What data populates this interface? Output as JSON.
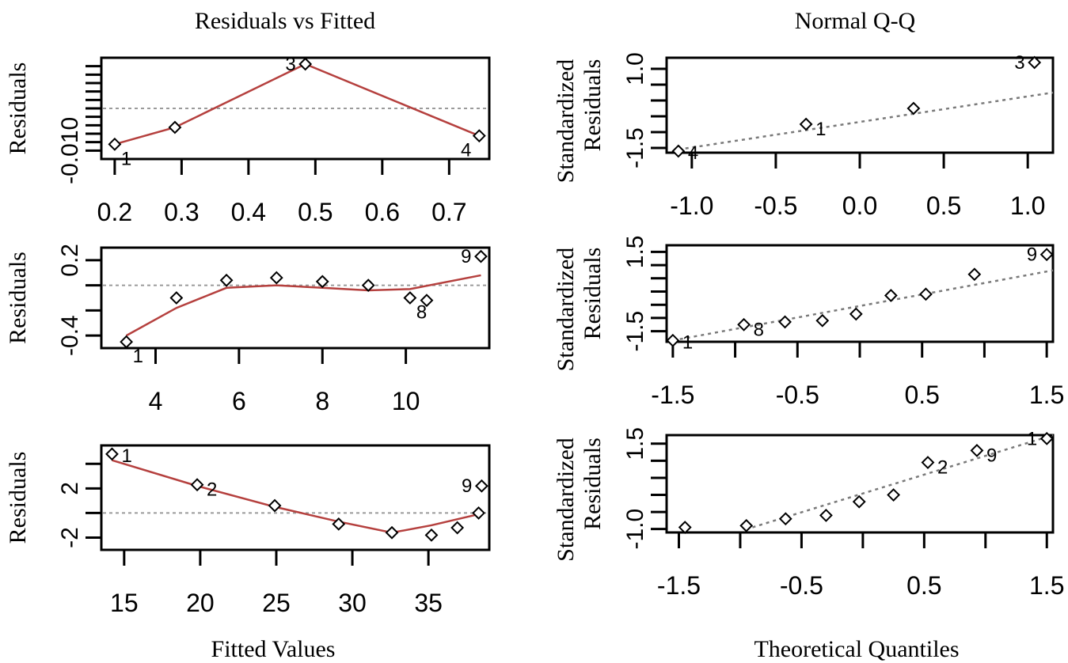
{
  "titles": {
    "left": "Residuals vs Fitted",
    "right": "Normal Q-Q",
    "left_xlabel": "Fitted Values",
    "right_xlabel": "Theoretical Quantiles"
  },
  "colors": {
    "smooth": "#b5403e",
    "reference": "#9a9a9a",
    "qqline": "#7a7a7a"
  },
  "chart_data": [
    {
      "id": "rvf1",
      "type": "scatter",
      "panel": "residuals-vs-fitted",
      "ylabel": "Residuals",
      "xlim": [
        0.18,
        0.76
      ],
      "ylim": [
        -0.012,
        0.012
      ],
      "xticks": [
        0.2,
        0.3,
        0.4,
        0.5,
        0.6,
        0.7
      ],
      "xtick_labels": [
        "0.2",
        "0.3",
        "0.4",
        "0.5",
        "0.6",
        "0.7"
      ],
      "yticks": [
        -0.01,
        -0.008,
        -0.006,
        -0.004,
        -0.002,
        0,
        0.002,
        0.004,
        0.006,
        0.008,
        0.01
      ],
      "ytick_labels": [
        "-0.010"
      ],
      "ytick_label_values": [
        -0.01
      ],
      "hline": 0.0,
      "x": [
        0.2,
        0.29,
        0.485,
        0.745
      ],
      "y": [
        -0.0085,
        -0.0045,
        0.0105,
        -0.0065
      ],
      "smooth_x": [
        0.2,
        0.29,
        0.485,
        0.745
      ],
      "smooth_y": [
        -0.0085,
        -0.0045,
        0.0105,
        -0.0065
      ],
      "point_labels": [
        {
          "text": "1",
          "x": 0.2,
          "y": -0.0085,
          "side": "below-right"
        },
        {
          "text": "3",
          "x": 0.485,
          "y": 0.0105,
          "side": "left"
        },
        {
          "text": "4",
          "x": 0.745,
          "y": -0.0065,
          "side": "below-left"
        }
      ]
    },
    {
      "id": "rvf2",
      "type": "scatter",
      "panel": "residuals-vs-fitted",
      "ylabel": "Residuals",
      "xlim": [
        2.7,
        12
      ],
      "ylim": [
        -0.5,
        0.3
      ],
      "xticks": [
        4,
        6,
        8,
        10
      ],
      "xtick_labels": [
        "4",
        "6",
        "8",
        "10"
      ],
      "yticks": [
        -0.4,
        -0.2,
        0.0,
        0.2
      ],
      "ytick_labels": [
        "-0.4",
        "0.2"
      ],
      "ytick_label_values": [
        -0.4,
        0.2
      ],
      "hline": 0.0,
      "x": [
        3.3,
        4.5,
        5.7,
        6.9,
        8.0,
        9.1,
        10.1,
        10.5,
        11.8
      ],
      "y": [
        -0.45,
        -0.1,
        0.04,
        0.06,
        0.03,
        0.0,
        -0.1,
        -0.12,
        0.23
      ],
      "smooth_x": [
        3.3,
        4.5,
        5.7,
        6.9,
        8.0,
        9.1,
        10.1,
        11.8
      ],
      "smooth_y": [
        -0.4,
        -0.18,
        -0.02,
        0.0,
        -0.02,
        -0.04,
        -0.03,
        0.08
      ],
      "point_labels": [
        {
          "text": "1",
          "x": 3.3,
          "y": -0.45,
          "side": "below-right"
        },
        {
          "text": "8",
          "x": 10.1,
          "y": -0.1,
          "side": "below-right"
        },
        {
          "text": "9",
          "x": 11.8,
          "y": 0.23,
          "side": "left"
        }
      ]
    },
    {
      "id": "rvf3",
      "type": "scatter",
      "panel": "residuals-vs-fitted",
      "ylabel": "Residuals",
      "xlim": [
        13.5,
        39
      ],
      "ylim": [
        -3,
        5.5
      ],
      "xticks": [
        15,
        20,
        25,
        30,
        35
      ],
      "xtick_labels": [
        "15",
        "20",
        "25",
        "30",
        "35"
      ],
      "yticks": [
        -2,
        0,
        2,
        4
      ],
      "ytick_labels": [
        "-2",
        "2"
      ],
      "ytick_label_values": [
        -2,
        2
      ],
      "hline": 0.0,
      "x": [
        14.2,
        19.8,
        24.9,
        29.1,
        32.6,
        35.2,
        36.9,
        38.3
      ],
      "y": [
        4.8,
        2.3,
        0.6,
        -0.9,
        -1.6,
        -1.8,
        -1.2,
        0.0
      ],
      "extra_points": [
        {
          "x": 38.5,
          "y": 2.2
        }
      ],
      "smooth_x": [
        14.2,
        19.8,
        24.9,
        29.1,
        32.6,
        35.2,
        38.3
      ],
      "smooth_y": [
        4.3,
        2.2,
        0.5,
        -0.7,
        -1.6,
        -1.0,
        -0.1
      ],
      "point_labels": [
        {
          "text": "1",
          "x": 14.2,
          "y": 4.8,
          "side": "right"
        },
        {
          "text": "2",
          "x": 19.8,
          "y": 2.3,
          "side": "right-low"
        },
        {
          "text": "9",
          "x": 38.5,
          "y": 2.2,
          "side": "left"
        }
      ]
    },
    {
      "id": "qq1",
      "type": "scatter",
      "panel": "normal-qq",
      "ylabel_top": "Standardized",
      "ylabel_bottom": "Residuals",
      "xlim": [
        -1.15,
        1.15
      ],
      "ylim": [
        -1.65,
        1.35
      ],
      "xticks": [
        -1.0,
        -0.5,
        0.0,
        0.5,
        1.0
      ],
      "xtick_labels": [
        "-1.0",
        "-0.5",
        "0.0",
        "0.5",
        "1.0"
      ],
      "yticks": [
        -1.5,
        -1.0,
        -0.5,
        0.0,
        0.5,
        1.0
      ],
      "ytick_labels": [
        "-1.5",
        "1.0"
      ],
      "ytick_label_values": [
        -1.5,
        1.0
      ],
      "x": [
        -1.08,
        -0.32,
        0.32,
        1.04
      ],
      "y": [
        -1.6,
        -0.75,
        -0.25,
        1.2
      ],
      "qqline_x": [
        -1.08,
        1.15
      ],
      "qqline_y": [
        -1.55,
        0.25
      ],
      "point_labels": [
        {
          "text": "4",
          "x": -1.08,
          "y": -1.6,
          "side": "right"
        },
        {
          "text": "1",
          "x": -0.32,
          "y": -0.75,
          "side": "right-low"
        },
        {
          "text": "3",
          "x": 1.04,
          "y": 1.2,
          "side": "left"
        }
      ]
    },
    {
      "id": "qq2",
      "type": "scatter",
      "panel": "normal-qq",
      "ylabel_top": "Standardized",
      "ylabel_bottom": "Residuals",
      "xlim": [
        -1.55,
        1.55
      ],
      "ylim": [
        -1.9,
        1.75
      ],
      "xticks": [
        -1.5,
        -1.0,
        -0.5,
        0.0,
        0.5,
        1.0,
        1.5
      ],
      "xtick_labels": [
        "-1.5",
        "-0.5",
        "0.5",
        "1.5"
      ],
      "xtick_label_values": [
        -1.5,
        -0.5,
        0.5,
        1.5
      ],
      "yticks": [
        -1.5,
        -1.0,
        -0.5,
        0.0,
        0.5,
        1.0,
        1.5
      ],
      "ytick_labels": [
        "-1.5",
        "1.5"
      ],
      "ytick_label_values": [
        -1.5,
        1.5
      ],
      "x": [
        -1.5,
        -0.93,
        -0.6,
        -0.3,
        -0.03,
        0.25,
        0.53,
        0.92,
        1.5
      ],
      "y": [
        -1.85,
        -1.25,
        -1.15,
        -1.1,
        -0.85,
        -0.15,
        -0.1,
        0.65,
        1.4
      ],
      "qqline_x": [
        -1.5,
        1.55
      ],
      "qqline_y": [
        -1.85,
        0.8
      ],
      "point_labels": [
        {
          "text": "1",
          "x": -1.5,
          "y": -1.85,
          "side": "right"
        },
        {
          "text": "8",
          "x": -0.93,
          "y": -1.25,
          "side": "right-low"
        },
        {
          "text": "9",
          "x": 1.5,
          "y": 1.4,
          "side": "left"
        }
      ]
    },
    {
      "id": "qq3",
      "type": "scatter",
      "panel": "normal-qq",
      "ylabel_top": "Standardized",
      "ylabel_bottom": "Residuals",
      "xlim": [
        -1.6,
        1.55
      ],
      "ylim": [
        -1.1,
        1.75
      ],
      "xticks": [
        -1.5,
        -1.0,
        -0.5,
        0.0,
        0.5,
        1.0,
        1.5
      ],
      "xtick_labels": [
        "-1.5",
        "-0.5",
        "0.5",
        "1.5"
      ],
      "xtick_label_values": [
        -1.5,
        -0.5,
        0.5,
        1.5
      ],
      "yticks": [
        -1.0,
        -0.5,
        0.0,
        0.5,
        1.0,
        1.5
      ],
      "ytick_labels": [
        "-1.0",
        "1.5"
      ],
      "ytick_label_values": [
        -1.0,
        1.5
      ],
      "x": [
        -1.45,
        -0.95,
        -0.63,
        -0.3,
        -0.03,
        0.25,
        0.53,
        0.93,
        1.5
      ],
      "y": [
        -0.95,
        -0.9,
        -0.7,
        -0.6,
        -0.2,
        0.0,
        0.95,
        1.3,
        1.65
      ],
      "qqline_x": [
        -0.9,
        1.55
      ],
      "qqline_y": [
        -0.95,
        1.8
      ],
      "point_labels": [
        {
          "text": "1",
          "x": 1.5,
          "y": 1.65,
          "side": "left"
        },
        {
          "text": "2",
          "x": 0.53,
          "y": 0.95,
          "side": "right-low"
        },
        {
          "text": "9",
          "x": 0.93,
          "y": 1.3,
          "side": "right-low"
        }
      ]
    }
  ]
}
